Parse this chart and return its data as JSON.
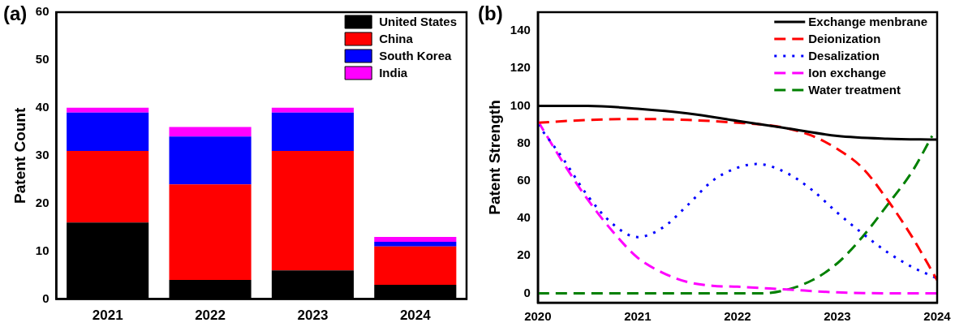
{
  "chart_data": [
    {
      "type": "bar",
      "title": "(a)",
      "ylabel": "Patent Count",
      "categories": [
        "2021",
        "2022",
        "2023",
        "2024"
      ],
      "stacked": true,
      "ylim": [
        0,
        60
      ],
      "yticks": [
        0,
        10,
        20,
        30,
        40,
        50,
        60
      ],
      "grid": false,
      "legend": "top right",
      "series": [
        {
          "name": "United States",
          "color": "#000000",
          "values": [
            16,
            4,
            6,
            3
          ]
        },
        {
          "name": "China",
          "color": "#ff0000",
          "values": [
            15,
            20,
            25,
            8
          ]
        },
        {
          "name": "South Korea",
          "color": "#0000ff",
          "values": [
            8,
            10,
            8,
            1
          ]
        },
        {
          "name": "India",
          "color": "#ff00ff",
          "values": [
            1,
            2,
            1,
            1
          ]
        }
      ]
    },
    {
      "type": "line",
      "title": "(b)",
      "ylabel": "Patent Strength",
      "xlim": [
        2020,
        2024
      ],
      "xticks": [
        2020,
        2021,
        2022,
        2023,
        2024
      ],
      "ylim": [
        -5,
        150
      ],
      "yticks": [
        0,
        20,
        40,
        60,
        80,
        100,
        120,
        140
      ],
      "grid": false,
      "legend": "top right",
      "marker": "none",
      "series": [
        {
          "name": "Exchange menbrane",
          "color": "#000000",
          "line_style": "solid",
          "x": [
            2020,
            2020.5,
            2021,
            2021.5,
            2022,
            2022.5,
            2023,
            2023.5,
            2024
          ],
          "values": [
            100,
            100,
            98.5,
            96,
            92,
            88,
            84,
            82.5,
            82
          ]
        },
        {
          "name": "Deionization",
          "color": "#ff0000",
          "line_style": "dashed",
          "x": [
            2020,
            2020.5,
            2021,
            2021.5,
            2022,
            2022.25,
            2022.5,
            2022.75,
            2023,
            2023.25,
            2023.5,
            2023.75,
            2024
          ],
          "values": [
            91,
            92.5,
            93,
            92.5,
            91,
            90,
            88,
            84,
            77,
            67,
            50,
            30,
            7
          ]
        },
        {
          "name": "Desalization",
          "color": "#0000ff",
          "line_style": "dotted",
          "x": [
            2020,
            2020.25,
            2020.5,
            2020.75,
            2021,
            2021.25,
            2021.5,
            2021.75,
            2022,
            2022.2,
            2022.5,
            2022.75,
            2023,
            2023.25,
            2023.5,
            2023.75,
            2024
          ],
          "values": [
            90,
            72,
            52,
            37,
            30,
            35,
            47,
            60,
            67,
            69,
            64,
            55,
            43,
            32,
            22,
            14,
            8
          ]
        },
        {
          "name": "Ion exchange",
          "color": "#ff00ff",
          "line_style": "dashed",
          "x": [
            2020,
            2020.25,
            2020.5,
            2020.75,
            2021,
            2021.25,
            2021.5,
            2021.75,
            2022,
            2022.5,
            2023,
            2023.5,
            2024
          ],
          "values": [
            92,
            70,
            50,
            33,
            19,
            11,
            6,
            4,
            3.5,
            2,
            0.5,
            0,
            0
          ]
        },
        {
          "name": "Water treatment",
          "color": "#008000",
          "line_style": "dashed",
          "x": [
            2020,
            2021,
            2022,
            2022.25,
            2022.5,
            2022.75,
            2023,
            2023.25,
            2023.5,
            2023.75,
            2023.95
          ],
          "values": [
            0,
            0,
            0,
            0,
            2,
            7,
            16,
            30,
            47,
            65,
            84
          ]
        }
      ]
    }
  ]
}
